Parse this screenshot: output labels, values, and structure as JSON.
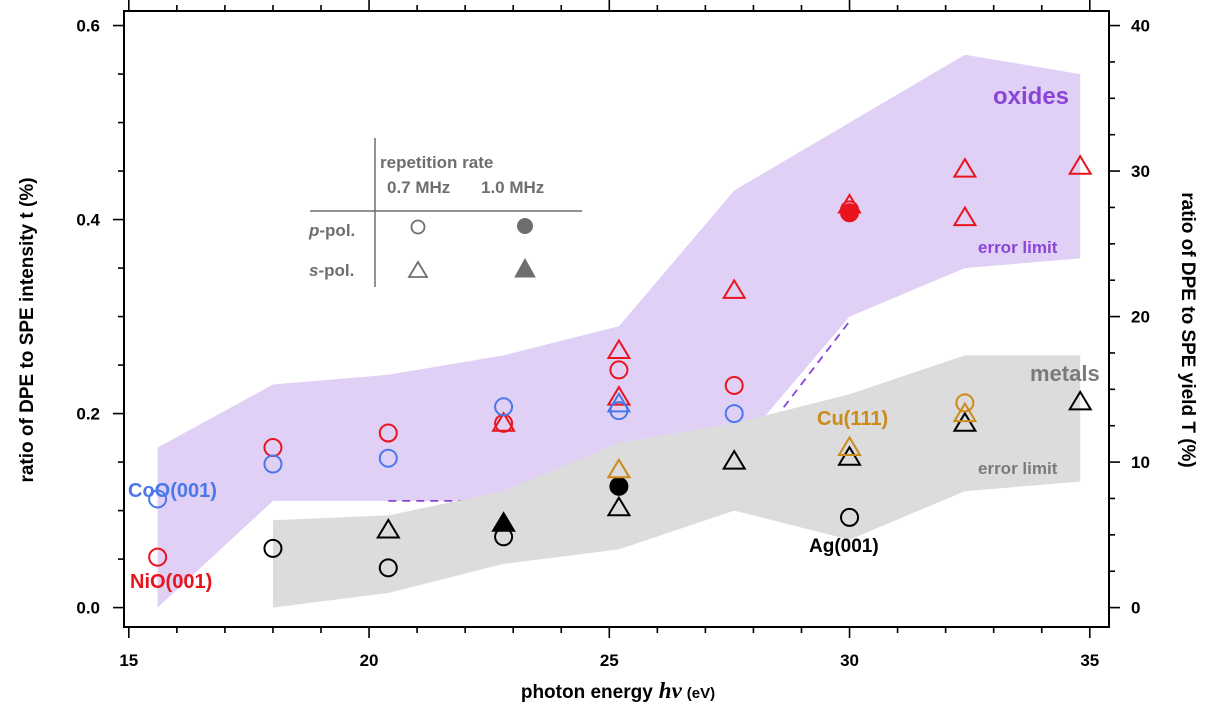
{
  "chart_data": {
    "type": "scatter",
    "xlabel_main": "photon energy",
    "xlabel_symbol": "hν",
    "xlabel_unit": "(eV)",
    "ylabel_left": "ratio of DPE to SPE intensity t (%)",
    "ylabel_right": "ratio of DPE to SPE yield T (%)",
    "xlim": [
      14.9,
      35.4
    ],
    "ylim_left": [
      -0.02,
      0.615
    ],
    "ylim_right": [
      -1.333,
      41.0
    ],
    "x_ticks": [
      15,
      20,
      25,
      30,
      35
    ],
    "y_left_ticks": [
      "0.0",
      "0.2",
      "0.4",
      "0.6"
    ],
    "y_right_ticks": [
      "0",
      "10",
      "20",
      "30",
      "40"
    ],
    "colors": {
      "NiO": "#e8141e",
      "CoO": "#4a78e8",
      "Ag": "#000000",
      "Cu": "#cc8a1a",
      "oxides_band": "#e0d0f6",
      "metals_band": "#dcdcdc",
      "oxides_text": "#8a45d8",
      "metals_text": "#7a7a7a",
      "legend": "#6e6e6e"
    },
    "bands": [
      {
        "name": "oxides",
        "label": "oxides",
        "error_label": "error limit",
        "upper": [
          [
            15.6,
            0.165
          ],
          [
            18.0,
            0.23
          ],
          [
            20.4,
            0.24
          ],
          [
            22.8,
            0.26
          ],
          [
            25.2,
            0.29
          ],
          [
            27.6,
            0.43
          ],
          [
            30.0,
            0.5
          ],
          [
            32.4,
            0.57
          ],
          [
            34.8,
            0.55
          ]
        ],
        "lower": [
          [
            15.6,
            0.0
          ],
          [
            18.0,
            0.11
          ],
          [
            20.4,
            0.11
          ],
          [
            22.8,
            0.11
          ],
          [
            25.2,
            0.16
          ],
          [
            27.6,
            0.16
          ],
          [
            30.0,
            0.3
          ],
          [
            32.4,
            0.35
          ],
          [
            34.8,
            0.36
          ]
        ],
        "dashed": [
          [
            20.4,
            0.11
          ],
          [
            22.8,
            0.11
          ],
          [
            25.2,
            0.15
          ],
          [
            27.6,
            0.14
          ],
          [
            30.0,
            0.295
          ]
        ]
      },
      {
        "name": "metals",
        "label": "metals",
        "error_label": "error limit",
        "upper": [
          [
            18.0,
            0.09
          ],
          [
            20.4,
            0.095
          ],
          [
            22.8,
            0.12
          ],
          [
            25.2,
            0.17
          ],
          [
            27.6,
            0.19
          ],
          [
            30.0,
            0.22
          ],
          [
            32.4,
            0.26
          ],
          [
            34.8,
            0.26
          ]
        ],
        "lower": [
          [
            18.0,
            0.0
          ],
          [
            20.4,
            0.015
          ],
          [
            22.8,
            0.045
          ],
          [
            25.2,
            0.06
          ],
          [
            27.6,
            0.1
          ],
          [
            30.0,
            0.07
          ],
          [
            32.4,
            0.12
          ],
          [
            34.8,
            0.13
          ]
        ]
      }
    ],
    "series": [
      {
        "name": "NiO(001)",
        "color": "#e8141e",
        "marker": "circle-open",
        "x": [
          15.6,
          18.0,
          20.4,
          22.8,
          25.2,
          27.6,
          30.0
        ],
        "y": [
          0.052,
          0.165,
          0.18,
          0.19,
          0.245,
          0.229,
          0.41
        ]
      },
      {
        "name": "NiO(001)",
        "color": "#e8141e",
        "marker": "circle-filled",
        "x": [
          30.0
        ],
        "y": [
          0.407
        ]
      },
      {
        "name": "NiO(001)",
        "color": "#e8141e",
        "marker": "triangle-open",
        "x": [
          22.8,
          25.2,
          25.2,
          27.6,
          30.0,
          32.4,
          32.4,
          34.8
        ],
        "y": [
          0.19,
          0.265,
          0.217,
          0.327,
          0.415,
          0.452,
          0.402,
          0.455
        ]
      },
      {
        "name": "CoO(001)",
        "color": "#4a78e8",
        "marker": "circle-open",
        "x": [
          15.6,
          18.0,
          20.4,
          22.8,
          25.2,
          27.6
        ],
        "y": [
          0.112,
          0.148,
          0.154,
          0.207,
          0.203,
          0.2
        ]
      },
      {
        "name": "CoO(001)",
        "color": "#4a78e8",
        "marker": "triangle-open",
        "x": [
          25.2
        ],
        "y": [
          0.21
        ]
      },
      {
        "name": "Ag(001)",
        "color": "#000000",
        "marker": "circle-open",
        "x": [
          18.0,
          20.4,
          22.8,
          30.0
        ],
        "y": [
          0.061,
          0.041,
          0.073,
          0.093
        ]
      },
      {
        "name": "Ag(001)",
        "color": "#000000",
        "marker": "circle-filled",
        "x": [
          25.2
        ],
        "y": [
          0.125
        ]
      },
      {
        "name": "Ag(001)",
        "color": "#000000",
        "marker": "triangle-open",
        "x": [
          20.4,
          25.2,
          27.6,
          30.0,
          32.4,
          34.8
        ],
        "y": [
          0.08,
          0.103,
          0.151,
          0.155,
          0.19,
          0.212
        ]
      },
      {
        "name": "Ag(001)",
        "color": "#000000",
        "marker": "triangle-filled",
        "x": [
          22.8
        ],
        "y": [
          0.087
        ]
      },
      {
        "name": "Cu(111)",
        "color": "#cc8a1a",
        "marker": "circle-open",
        "x": [
          32.4
        ],
        "y": [
          0.211
        ]
      },
      {
        "name": "Cu(111)",
        "color": "#cc8a1a",
        "marker": "triangle-open",
        "x": [
          25.2,
          30.0,
          32.4
        ],
        "y": [
          0.142,
          0.165,
          0.2
        ]
      }
    ],
    "labels": [
      {
        "text": "CoO(001)",
        "color": "#4a78e8"
      },
      {
        "text": "NiO(001)",
        "color": "#e8141e"
      },
      {
        "text": "Ag(001)",
        "color": "#000000"
      },
      {
        "text": "Cu(111)",
        "color": "#cc8a1a"
      },
      {
        "text": "oxides",
        "color": "#8a45d8"
      },
      {
        "text": "metals",
        "color": "#7a7a7a"
      }
    ],
    "legend": {
      "title": "repetition rate",
      "columns": [
        "0.7 MHz",
        "1.0 MHz"
      ],
      "rows": [
        {
          "prefix": "p",
          "suffix": "-pol."
        },
        {
          "prefix": "s",
          "suffix": "-pol."
        }
      ]
    }
  }
}
